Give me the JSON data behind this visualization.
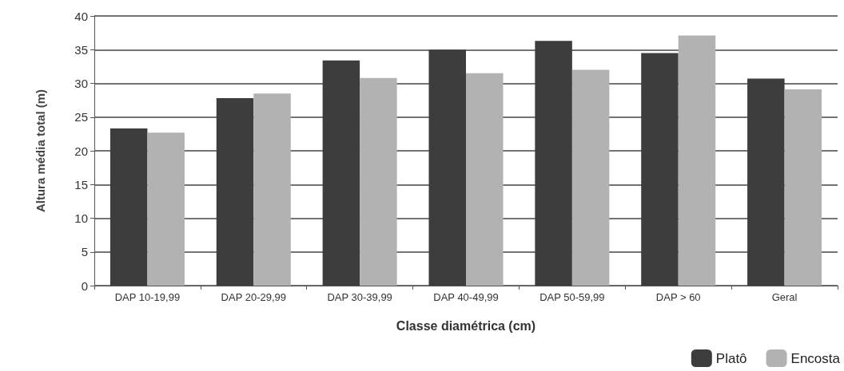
{
  "chart_data": {
    "type": "bar",
    "xlabel": "Classe diamétrica (cm)",
    "ylabel": "Altura média total (m)",
    "categories": [
      "DAP 10-19,99",
      "DAP 20-29,99",
      "DAP 30-39,99",
      "DAP 40-49,99",
      "DAP 50-59,99",
      "DAP > 60",
      "Geral"
    ],
    "series": [
      {
        "name": "Platô",
        "color": "#3d3d3d",
        "values": [
          23.3,
          27.8,
          33.4,
          35.0,
          36.3,
          34.5,
          30.7
        ]
      },
      {
        "name": "Encosta",
        "color": "#b2b2b2",
        "values": [
          22.7,
          28.5,
          30.8,
          31.5,
          32.0,
          37.1,
          29.1
        ]
      }
    ],
    "ylim": [
      0,
      40
    ],
    "yticks": [
      0,
      5,
      10,
      15,
      20,
      25,
      30,
      35,
      40
    ],
    "grid": "y",
    "legend": "bottom right"
  }
}
